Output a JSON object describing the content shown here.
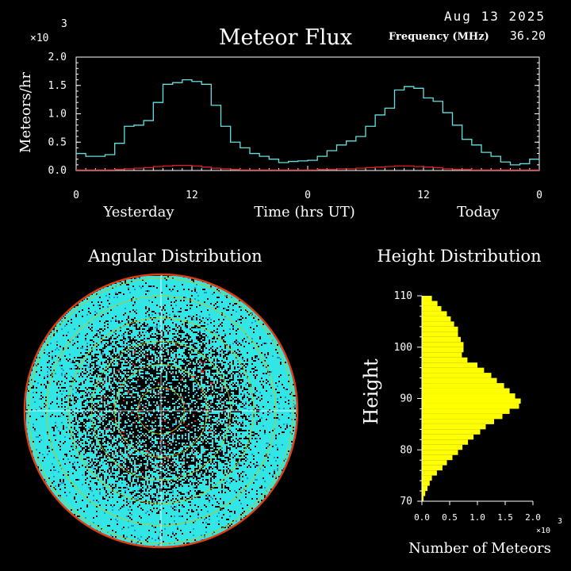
{
  "header": {
    "date": "Aug 13 2025",
    "freq_label": "Frequency (MHz)",
    "freq_value": "36.20"
  },
  "flux": {
    "title": "Meteor Flux",
    "ylabel": "Meteors/hr",
    "y_multiplier": "×10",
    "y_exponent": "3",
    "x_center_label": "Time (hrs UT)",
    "day_labels": [
      "Yesterday",
      "Today"
    ],
    "xtick_labels": [
      "0",
      "12",
      "0",
      "12",
      "0"
    ],
    "ytick_labels": [
      "0.0",
      "0.5",
      "1.0",
      "1.5",
      "2.0"
    ]
  },
  "angular": {
    "title": "Angular Distribution"
  },
  "height_dist": {
    "title": "Height Distribution",
    "ylabel": "Height",
    "xlabel": "Number of Meteors",
    "x_multiplier": "×10",
    "x_exponent": "3",
    "ytick_labels": [
      "70",
      "80",
      "90",
      "100",
      "110"
    ],
    "xtick_labels": [
      "0.0",
      "0.5",
      "1.0",
      "1.5",
      "2.0"
    ]
  },
  "colors": {
    "background": "#000000",
    "axes": "#ffffff",
    "flux_line": "#66e0e0",
    "flux_low_line": "#dd2222",
    "angular_fill": "#33e6e6",
    "angular_rim": "#e04010",
    "angular_grid": "#d4c400",
    "angular_cross": "#ffffff",
    "height_bars": "#ffff00"
  },
  "chart_data": [
    {
      "type": "line",
      "title": "Meteor Flux",
      "xlabel": "Time (hrs UT)",
      "ylabel": "Meteors/hr",
      "y_multiplier": 1000,
      "xlim": [
        0,
        48
      ],
      "ylim": [
        0,
        2.0
      ],
      "grid": false,
      "series": [
        {
          "step": true,
          "x": [
            0,
            1,
            2,
            3,
            4,
            5,
            6,
            7,
            8,
            9,
            10,
            11,
            12,
            13,
            14,
            15,
            16,
            17,
            18,
            19,
            20,
            21,
            22,
            23,
            24,
            25,
            26,
            27,
            28,
            29,
            30,
            31,
            32,
            33,
            34,
            35,
            36,
            37,
            38,
            39,
            40,
            41,
            42,
            43,
            44,
            45,
            46,
            47
          ],
          "values": [
            0.3,
            0.25,
            0.25,
            0.28,
            0.48,
            0.78,
            0.8,
            0.88,
            1.2,
            1.52,
            1.55,
            1.6,
            1.57,
            1.52,
            1.15,
            0.78,
            0.5,
            0.4,
            0.3,
            0.25,
            0.2,
            0.14,
            0.16,
            0.17,
            0.18,
            0.25,
            0.35,
            0.45,
            0.52,
            0.6,
            0.78,
            0.98,
            1.1,
            1.42,
            1.48,
            1.45,
            1.28,
            1.22,
            1.02,
            0.8,
            0.55,
            0.45,
            0.32,
            0.25,
            0.15,
            0.1,
            0.12,
            0.2
          ]
        },
        {
          "step": true,
          "x": [
            0,
            1,
            2,
            3,
            4,
            5,
            6,
            7,
            8,
            9,
            10,
            11,
            12,
            13,
            14,
            15,
            16,
            17,
            18,
            19,
            20,
            21,
            22,
            23,
            24,
            25,
            26,
            27,
            28,
            29,
            30,
            31,
            32,
            33,
            34,
            35,
            36,
            37,
            38,
            39,
            40,
            41,
            42,
            43,
            44,
            45,
            46,
            47
          ],
          "values": [
            0.01,
            0.01,
            0.01,
            0.01,
            0.02,
            0.03,
            0.04,
            0.05,
            0.07,
            0.08,
            0.09,
            0.09,
            0.08,
            0.06,
            0.04,
            0.03,
            0.02,
            0.01,
            0.01,
            0.01,
            0.01,
            0.01,
            0.01,
            0.01,
            0.01,
            0.02,
            0.02,
            0.03,
            0.03,
            0.04,
            0.05,
            0.06,
            0.07,
            0.08,
            0.08,
            0.07,
            0.06,
            0.05,
            0.03,
            0.02,
            0.02,
            0.01,
            0.01,
            0.01,
            0.01,
            0.01,
            0.01,
            0.01
          ]
        }
      ]
    },
    {
      "type": "heatmap",
      "title": "Angular Distribution",
      "projection": "polar",
      "grid": true
    },
    {
      "type": "bar",
      "orientation": "horizontal",
      "title": "Height Distribution",
      "xlabel": "Number of Meteors",
      "ylabel": "Height",
      "x_multiplier": 1000,
      "xlim": [
        0,
        2.0
      ],
      "ylim": [
        70,
        110
      ],
      "bin_width": 1,
      "categories": [
        70,
        71,
        72,
        73,
        74,
        75,
        76,
        77,
        78,
        79,
        80,
        81,
        82,
        83,
        84,
        85,
        86,
        87,
        88,
        89,
        90,
        91,
        92,
        93,
        94,
        95,
        96,
        97,
        98,
        99,
        100,
        101,
        102,
        103,
        104,
        105,
        106,
        107,
        108,
        109
      ],
      "values": [
        0.03,
        0.06,
        0.1,
        0.14,
        0.18,
        0.27,
        0.37,
        0.45,
        0.55,
        0.65,
        0.73,
        0.83,
        0.93,
        1.05,
        1.15,
        1.3,
        1.45,
        1.58,
        1.75,
        1.78,
        1.68,
        1.58,
        1.48,
        1.35,
        1.25,
        1.12,
        1.0,
        0.82,
        0.72,
        0.75,
        0.75,
        0.7,
        0.65,
        0.65,
        0.58,
        0.52,
        0.45,
        0.35,
        0.28,
        0.18
      ]
    }
  ]
}
